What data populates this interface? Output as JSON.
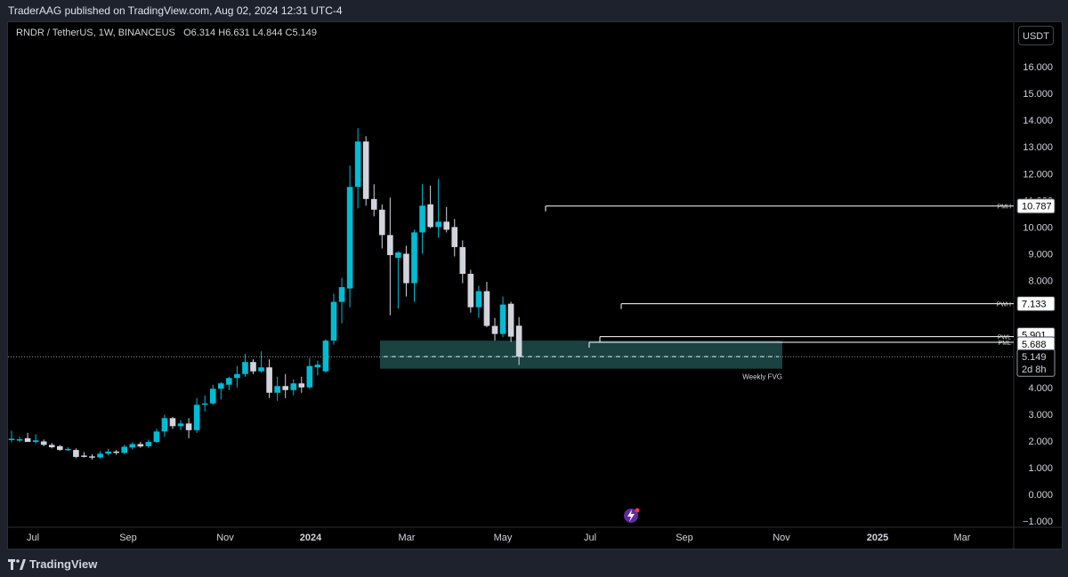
{
  "header": {
    "published": "TraderAAG published on TradingView.com, Aug 02, 2024 12:31 UTC-4"
  },
  "legend": {
    "symbol": "RNDR / TetherUS, 1W, BINANCEUS",
    "o_label": "O",
    "o_value": "6.314",
    "h_label": "H",
    "h_value": "6.631",
    "l_label": "L",
    "l_value": "4.844",
    "c_label": "C",
    "c_value": "5.149"
  },
  "currency_button": "USDT",
  "footer": {
    "logo_text": "TradingView"
  },
  "colors": {
    "up": "#00bcd4",
    "down": "#d1d4dc",
    "fvg_fill": "#1d4e4c",
    "background": "#000000"
  },
  "chart_data": {
    "type": "candlestick",
    "interval": "1W",
    "ylim": [
      -1,
      16
    ],
    "y_ticks": [
      "16.000",
      "15.000",
      "14.000",
      "13.000",
      "12.000",
      "11.000",
      "10.000",
      "9.000",
      "8.000",
      "7.000",
      "6.000",
      "5.000",
      "4.000",
      "3.000",
      "2.000",
      "1.000",
      "0.000",
      "−1.000"
    ],
    "x_ticks": [
      "Jul",
      "Sep",
      "Nov",
      "2024",
      "Mar",
      "May",
      "Jul",
      "Sep",
      "Nov",
      "2025",
      "Mar"
    ],
    "candles": [
      {
        "o": 2.05,
        "h": 2.38,
        "l": 1.95,
        "c": 2.08
      },
      {
        "o": 2.02,
        "h": 2.15,
        "l": 1.96,
        "c": 2.06
      },
      {
        "o": 2.1,
        "h": 2.3,
        "l": 1.98,
        "c": 1.96
      },
      {
        "o": 1.96,
        "h": 2.25,
        "l": 1.9,
        "c": 2.02
      },
      {
        "o": 1.98,
        "h": 2.05,
        "l": 1.8,
        "c": 1.85
      },
      {
        "o": 1.85,
        "h": 1.92,
        "l": 1.72,
        "c": 1.76
      },
      {
        "o": 1.8,
        "h": 1.85,
        "l": 1.62,
        "c": 1.66
      },
      {
        "o": 1.68,
        "h": 1.76,
        "l": 1.62,
        "c": 1.7
      },
      {
        "o": 1.66,
        "h": 1.72,
        "l": 1.35,
        "c": 1.4
      },
      {
        "o": 1.45,
        "h": 1.58,
        "l": 1.38,
        "c": 1.42
      },
      {
        "o": 1.42,
        "h": 1.5,
        "l": 1.3,
        "c": 1.38
      },
      {
        "o": 1.38,
        "h": 1.62,
        "l": 1.33,
        "c": 1.52
      },
      {
        "o": 1.52,
        "h": 1.7,
        "l": 1.45,
        "c": 1.6
      },
      {
        "o": 1.6,
        "h": 1.66,
        "l": 1.48,
        "c": 1.55
      },
      {
        "o": 1.55,
        "h": 1.85,
        "l": 1.5,
        "c": 1.78
      },
      {
        "o": 1.75,
        "h": 1.95,
        "l": 1.68,
        "c": 1.88
      },
      {
        "o": 1.88,
        "h": 1.96,
        "l": 1.74,
        "c": 1.79
      },
      {
        "o": 1.8,
        "h": 2.05,
        "l": 1.74,
        "c": 1.96
      },
      {
        "o": 1.96,
        "h": 2.45,
        "l": 1.92,
        "c": 2.35
      },
      {
        "o": 2.35,
        "h": 2.98,
        "l": 2.15,
        "c": 2.85
      },
      {
        "o": 2.85,
        "h": 2.9,
        "l": 2.45,
        "c": 2.55
      },
      {
        "o": 2.55,
        "h": 2.78,
        "l": 2.4,
        "c": 2.65
      },
      {
        "o": 2.65,
        "h": 2.85,
        "l": 2.1,
        "c": 2.4
      },
      {
        "o": 2.4,
        "h": 3.6,
        "l": 2.3,
        "c": 3.35
      },
      {
        "o": 3.35,
        "h": 3.7,
        "l": 3.1,
        "c": 3.4
      },
      {
        "o": 3.4,
        "h": 4.1,
        "l": 3.35,
        "c": 3.95
      },
      {
        "o": 3.95,
        "h": 4.2,
        "l": 3.55,
        "c": 4.15
      },
      {
        "o": 4.1,
        "h": 4.4,
        "l": 3.9,
        "c": 4.35
      },
      {
        "o": 4.35,
        "h": 4.8,
        "l": 4.0,
        "c": 4.5
      },
      {
        "o": 4.5,
        "h": 5.25,
        "l": 4.4,
        "c": 4.95
      },
      {
        "o": 4.95,
        "h": 5.05,
        "l": 4.5,
        "c": 4.6
      },
      {
        "o": 4.6,
        "h": 5.35,
        "l": 4.55,
        "c": 4.75
      },
      {
        "o": 4.75,
        "h": 5.05,
        "l": 3.6,
        "c": 3.8
      },
      {
        "o": 3.8,
        "h": 4.4,
        "l": 3.5,
        "c": 4.05
      },
      {
        "o": 4.05,
        "h": 4.5,
        "l": 3.6,
        "c": 3.9
      },
      {
        "o": 3.9,
        "h": 4.3,
        "l": 3.7,
        "c": 4.15
      },
      {
        "o": 4.15,
        "h": 4.4,
        "l": 3.8,
        "c": 4.0
      },
      {
        "o": 4.0,
        "h": 5.1,
        "l": 3.95,
        "c": 4.8
      },
      {
        "o": 4.75,
        "h": 5.0,
        "l": 4.45,
        "c": 4.85
      },
      {
        "o": 4.6,
        "h": 5.8,
        "l": 4.55,
        "c": 5.75
      },
      {
        "o": 5.75,
        "h": 7.5,
        "l": 5.6,
        "c": 7.2
      },
      {
        "o": 7.2,
        "h": 8.1,
        "l": 6.4,
        "c": 7.75
      },
      {
        "o": 7.7,
        "h": 12.3,
        "l": 7.0,
        "c": 11.5
      },
      {
        "o": 11.5,
        "h": 13.7,
        "l": 10.7,
        "c": 13.2
      },
      {
        "o": 13.2,
        "h": 13.4,
        "l": 10.8,
        "c": 11.05
      },
      {
        "o": 11.05,
        "h": 11.6,
        "l": 10.4,
        "c": 10.65
      },
      {
        "o": 10.65,
        "h": 10.85,
        "l": 9.2,
        "c": 9.7
      },
      {
        "o": 9.7,
        "h": 11.1,
        "l": 6.7,
        "c": 8.95
      },
      {
        "o": 8.85,
        "h": 9.1,
        "l": 6.95,
        "c": 9.05
      },
      {
        "o": 9.0,
        "h": 9.3,
        "l": 7.4,
        "c": 7.9
      },
      {
        "o": 7.9,
        "h": 9.9,
        "l": 7.2,
        "c": 9.8
      },
      {
        "o": 9.8,
        "h": 11.6,
        "l": 9.0,
        "c": 10.8
      },
      {
        "o": 10.85,
        "h": 11.55,
        "l": 9.95,
        "c": 10.0
      },
      {
        "o": 10.0,
        "h": 11.8,
        "l": 9.6,
        "c": 10.2
      },
      {
        "o": 10.2,
        "h": 10.75,
        "l": 9.8,
        "c": 9.9
      },
      {
        "o": 10.0,
        "h": 10.3,
        "l": 8.9,
        "c": 9.25
      },
      {
        "o": 9.25,
        "h": 9.5,
        "l": 7.9,
        "c": 8.25
      },
      {
        "o": 8.25,
        "h": 8.4,
        "l": 6.8,
        "c": 7.0
      },
      {
        "o": 7.0,
        "h": 7.8,
        "l": 6.6,
        "c": 7.6
      },
      {
        "o": 7.6,
        "h": 7.95,
        "l": 6.25,
        "c": 6.3
      },
      {
        "o": 6.3,
        "h": 6.6,
        "l": 5.75,
        "c": 6.0
      },
      {
        "o": 6.0,
        "h": 7.4,
        "l": 5.88,
        "c": 7.1
      },
      {
        "o": 7.13,
        "h": 7.2,
        "l": 5.7,
        "c": 5.9
      },
      {
        "o": 6.31,
        "h": 6.63,
        "l": 4.84,
        "c": 5.15
      }
    ],
    "current_price": 5.149,
    "countdown": "2d 8h",
    "levels": [
      {
        "label": "PMH",
        "value": 10.787,
        "value_text": "10.787"
      },
      {
        "label": "PWH",
        "value": 7.133,
        "value_text": "7.133"
      },
      {
        "label": "PWL",
        "value": 5.901,
        "value_text": "5.901"
      },
      {
        "label": "PML",
        "value": 5.688,
        "value_text": "5.688"
      }
    ],
    "fvg": {
      "label": "Weekly FVG",
      "top": 5.75,
      "bottom": 4.7,
      "mid": 5.15
    },
    "current_price_text": "5.149"
  }
}
